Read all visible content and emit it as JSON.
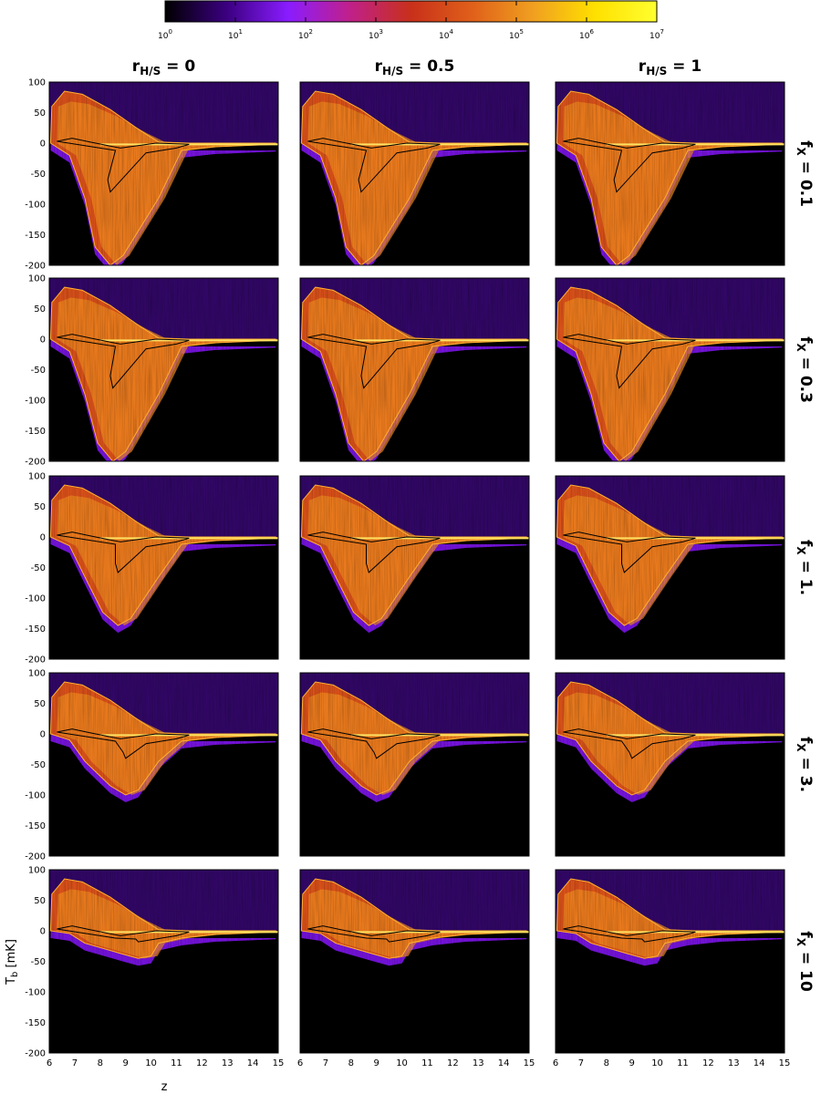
{
  "chart_data": {
    "type": "heatmap",
    "colorbar": {
      "scale": "log",
      "range": [
        1,
        10000000
      ],
      "colors": [
        "#000000",
        "#3b0080",
        "#8a1cff",
        "#c0208a",
        "#c8301a",
        "#e0601a",
        "#f0a020",
        "#ffe000",
        "#ffff30"
      ],
      "ticks": [
        {
          "base": "10",
          "exp": "0"
        },
        {
          "base": "10",
          "exp": "1"
        },
        {
          "base": "10",
          "exp": "2"
        },
        {
          "base": "10",
          "exp": "3"
        },
        {
          "base": "10",
          "exp": "4"
        },
        {
          "base": "10",
          "exp": "5"
        },
        {
          "base": "10",
          "exp": "6"
        },
        {
          "base": "10",
          "exp": "7"
        }
      ]
    },
    "columns": [
      {
        "base": "r",
        "sub": "H/S",
        "rest": " = 0",
        "value": 0
      },
      {
        "base": "r",
        "sub": "H/S",
        "rest": " = 0.5",
        "value": 0.5
      },
      {
        "base": "r",
        "sub": "H/S",
        "rest": " = 1",
        "value": 1
      }
    ],
    "rows": [
      {
        "base": "f",
        "sub": "X",
        "rest": " = 0.1",
        "value": 0.1
      },
      {
        "base": "f",
        "sub": "X",
        "rest": " = 0.3",
        "value": 0.3
      },
      {
        "base": "f",
        "sub": "X",
        "rest": " = 1.",
        "value": 1
      },
      {
        "base": "f",
        "sub": "X",
        "rest": " = 3.",
        "value": 3
      },
      {
        "base": "f",
        "sub": "X",
        "rest": " = 10",
        "value": 10
      }
    ],
    "xlim": [
      6,
      15
    ],
    "ylim": [
      -200,
      100
    ],
    "xticks": [
      "6",
      "7",
      "8",
      "9",
      "10",
      "11",
      "12",
      "13",
      "14",
      "15"
    ],
    "yticks": [
      "100",
      "50",
      "0",
      "-50",
      "-100",
      "-150",
      "-200"
    ],
    "xlabel": "z",
    "ylabel": {
      "base": "T",
      "sub": "b",
      "rest": "  [mK]"
    },
    "panels_minimum": [
      {
        "fx": 0.1,
        "z_min": 8.4,
        "tb_min": -200
      },
      {
        "fx": 0.3,
        "z_min": 8.5,
        "tb_min": -200
      },
      {
        "fx": 1,
        "z_min": 8.7,
        "tb_min": -145
      },
      {
        "fx": 3,
        "z_min": 9.0,
        "tb_min": -100
      },
      {
        "fx": 10,
        "z_min": 9.5,
        "tb_min": -45
      }
    ]
  }
}
